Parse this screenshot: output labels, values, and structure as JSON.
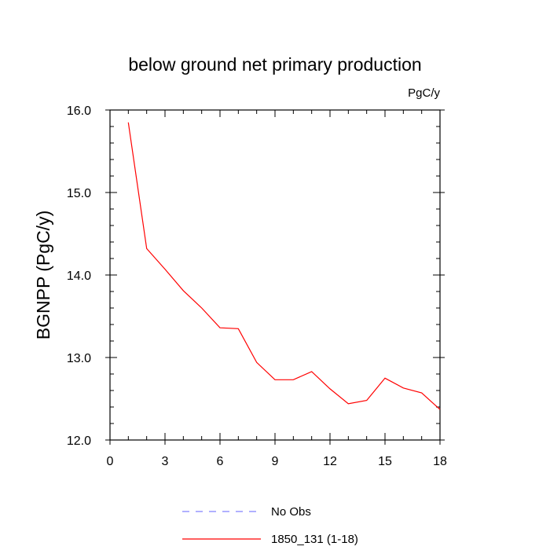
{
  "chart_data": {
    "type": "line",
    "title": "below ground net primary production",
    "units_label": "PgC/y",
    "ylabel": "BGNPP  (PgC/y)",
    "xlabel": "",
    "xlim": [
      0,
      18
    ],
    "ylim": [
      12.0,
      16.0
    ],
    "xticks": [
      "0",
      "3",
      "6",
      "9",
      "12",
      "15",
      "18"
    ],
    "yticks": [
      "12.0",
      "13.0",
      "14.0",
      "15.0",
      "16.0"
    ],
    "grid": false,
    "legend_position": "bottom",
    "series": [
      {
        "name": "No Obs",
        "color": "#8080ff",
        "style": "dashed",
        "x": [],
        "y": []
      },
      {
        "name": "1850_131 (1-18)",
        "color": "#ff0000",
        "style": "solid",
        "x": [
          1,
          2,
          3,
          4,
          5,
          6,
          7,
          8,
          9,
          10,
          11,
          12,
          13,
          14,
          15,
          16,
          17,
          18
        ],
        "y": [
          15.85,
          14.32,
          14.07,
          13.81,
          13.6,
          13.36,
          13.35,
          12.94,
          12.73,
          12.73,
          12.83,
          12.62,
          12.44,
          12.48,
          12.75,
          12.63,
          12.57,
          12.37
        ]
      }
    ]
  }
}
